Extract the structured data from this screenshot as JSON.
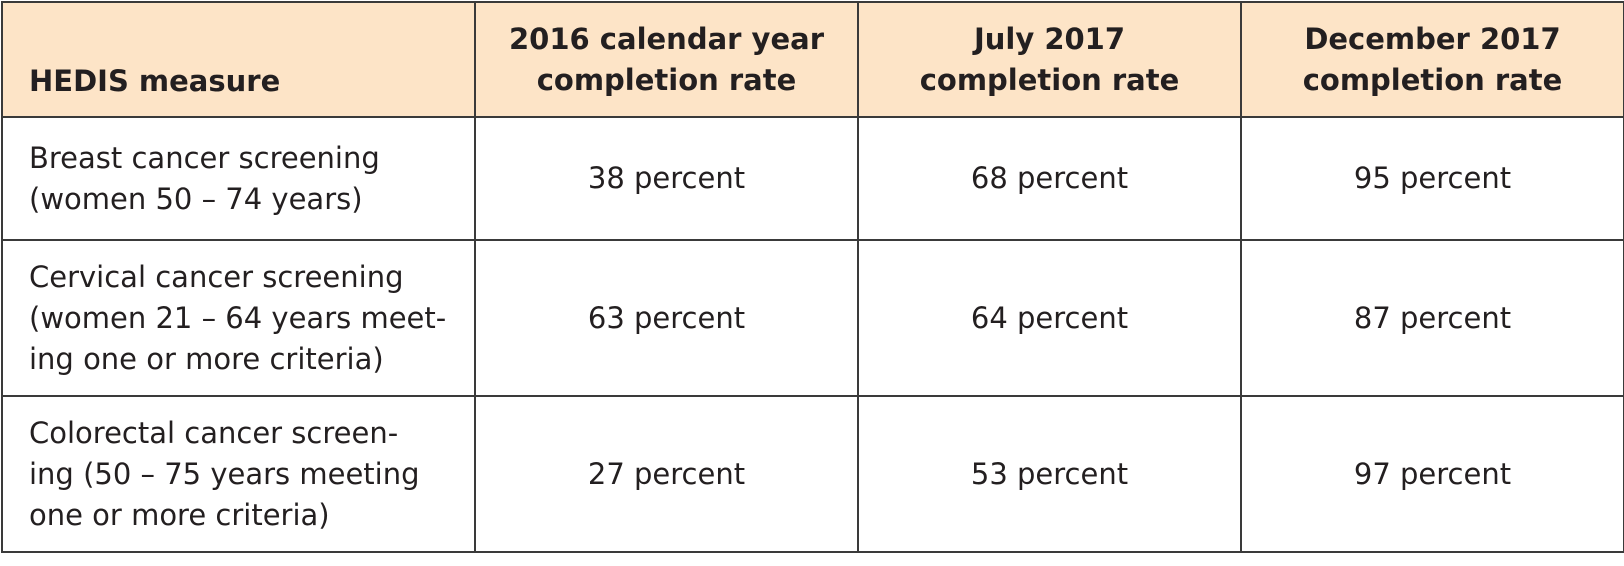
{
  "table": {
    "header": [
      [
        "HEDIS measure"
      ],
      [
        "2016 calendar year",
        "completion rate"
      ],
      [
        "July 2017",
        "completion rate"
      ],
      [
        "December 2017",
        "completion rate"
      ]
    ],
    "rows": [
      [
        [
          "Breast cancer screening",
          "(women 50 – 74 years)"
        ],
        [
          "38 percent"
        ],
        [
          "68 percent"
        ],
        [
          "95 percent"
        ]
      ],
      [
        [
          "Cervical cancer screening",
          "(women 21 – 64 years meet-",
          "ing one or more criteria)"
        ],
        [
          "63 percent"
        ],
        [
          "64 percent"
        ],
        [
          "87 percent"
        ]
      ],
      [
        [
          "Colorectal cancer screen-",
          "ing (50 – 75 years meeting",
          "one or more criteria)"
        ],
        [
          "27 percent"
        ],
        [
          "53 percent"
        ],
        [
          "97 percent"
        ]
      ]
    ]
  }
}
